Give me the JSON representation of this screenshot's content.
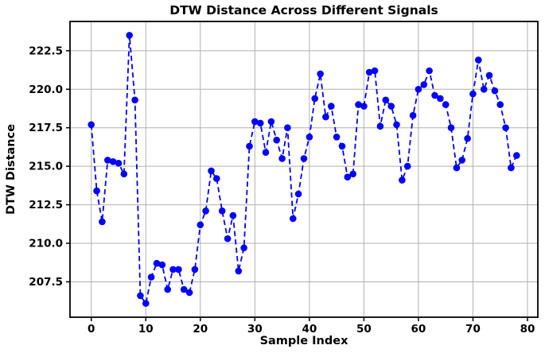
{
  "figure": {
    "title": "DTW Distance Across Different Signals",
    "xlabel": "Sample Index",
    "ylabel": "DTW Distance"
  },
  "chart_data": {
    "type": "line",
    "title": "DTW Distance Across Different Signals",
    "xlabel": "Sample Index",
    "ylabel": "DTW Distance",
    "line_style": "dashed",
    "marker": "circle",
    "color": "#0000ff",
    "grid": true,
    "grid_color": "#b0b0b0",
    "legend": "none",
    "xlim": [
      -3.9,
      81.9
    ],
    "ylim": [
      205.2,
      224.4
    ],
    "xticks": [
      "0",
      "10",
      "20",
      "30",
      "40",
      "50",
      "60",
      "70",
      "80"
    ],
    "yticks": [
      "207.5",
      "210.0",
      "212.5",
      "215.0",
      "217.5",
      "220.0",
      "222.5"
    ],
    "x": [
      0,
      1,
      2,
      3,
      4,
      5,
      6,
      7,
      8,
      9,
      10,
      11,
      12,
      13,
      14,
      15,
      16,
      17,
      18,
      19,
      20,
      21,
      22,
      23,
      24,
      25,
      26,
      27,
      28,
      29,
      30,
      31,
      32,
      33,
      34,
      35,
      36,
      37,
      38,
      39,
      40,
      41,
      42,
      43,
      44,
      45,
      46,
      47,
      48,
      49,
      50,
      51,
      52,
      53,
      54,
      55,
      56,
      57,
      58,
      59,
      60,
      61,
      62,
      63,
      64,
      65,
      66,
      67,
      68,
      69,
      70,
      71,
      72,
      73,
      74,
      75,
      76,
      77,
      78
    ],
    "y": [
      217.7,
      213.4,
      211.4,
      215.4,
      215.3,
      215.2,
      214.5,
      223.5,
      219.3,
      206.6,
      206.1,
      207.8,
      208.7,
      208.6,
      207.0,
      208.3,
      208.3,
      207.0,
      206.8,
      208.3,
      211.2,
      212.1,
      214.7,
      214.2,
      212.1,
      210.3,
      211.8,
      208.2,
      209.7,
      216.3,
      217.9,
      217.8,
      215.9,
      217.9,
      216.7,
      215.5,
      217.5,
      211.6,
      213.2,
      215.5,
      216.9,
      219.4,
      221.0,
      218.2,
      218.9,
      216.9,
      216.3,
      214.3,
      214.5,
      219.0,
      218.9,
      221.1,
      221.2,
      217.6,
      219.3,
      218.9,
      217.7,
      214.1,
      215.0,
      218.3,
      220.0,
      220.3,
      221.2,
      219.6,
      219.4,
      219.0,
      217.5,
      214.9,
      215.4,
      216.8,
      219.7,
      221.9,
      220.0,
      220.9,
      219.9,
      219.0,
      217.5,
      214.9,
      215.7
    ]
  }
}
